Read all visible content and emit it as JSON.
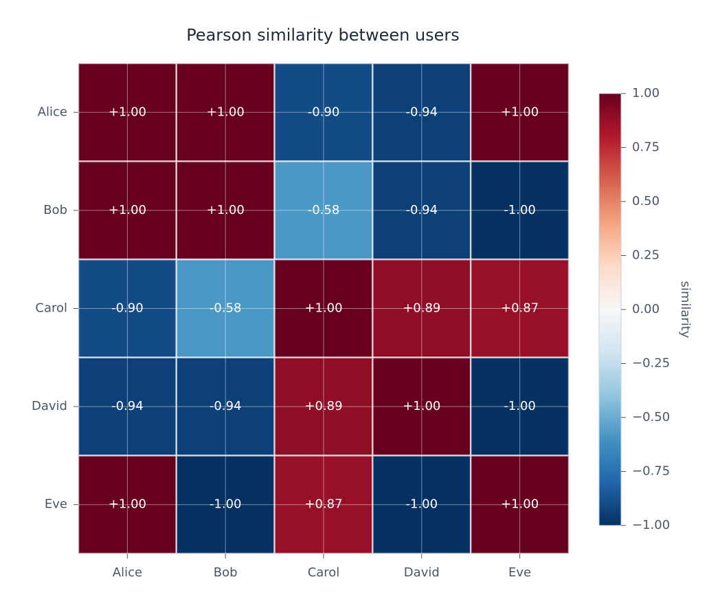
{
  "chart_data": {
    "type": "heatmap",
    "title": "Pearson similarity between users",
    "x_categories": [
      "Alice",
      "Bob",
      "Carol",
      "David",
      "Eve"
    ],
    "y_categories": [
      "Alice",
      "Bob",
      "Carol",
      "David",
      "Eve"
    ],
    "values": [
      [
        1.0,
        1.0,
        -0.9,
        -0.94,
        1.0
      ],
      [
        1.0,
        1.0,
        -0.58,
        -0.94,
        -1.0
      ],
      [
        -0.9,
        -0.58,
        1.0,
        0.89,
        0.87
      ],
      [
        -0.94,
        -0.94,
        0.89,
        1.0,
        -1.0
      ],
      [
        1.0,
        -1.0,
        0.87,
        -1.0,
        1.0
      ]
    ],
    "value_labels": [
      [
        "+1.00",
        "+1.00",
        "-0.90",
        "-0.94",
        "+1.00"
      ],
      [
        "+1.00",
        "+1.00",
        "-0.58",
        "-0.94",
        "-1.00"
      ],
      [
        "-0.90",
        "-0.58",
        "+1.00",
        "+0.89",
        "+0.87"
      ],
      [
        "-0.94",
        "-0.94",
        "+0.89",
        "+1.00",
        "-1.00"
      ],
      [
        "+1.00",
        "-1.00",
        "+0.87",
        "-1.00",
        "+1.00"
      ]
    ],
    "colormap": "RdBu_r",
    "zlim": [
      -1.0,
      1.0
    ],
    "zticks": [
      {
        "value": 1.0,
        "label": "1.00"
      },
      {
        "value": 0.75,
        "label": "0.75"
      },
      {
        "value": 0.5,
        "label": "0.50"
      },
      {
        "value": 0.25,
        "label": "0.25"
      },
      {
        "value": 0.0,
        "label": "0.00"
      },
      {
        "value": -0.25,
        "label": "−0.25"
      },
      {
        "value": -0.5,
        "label": "−0.50"
      },
      {
        "value": -0.75,
        "label": "−0.75"
      },
      {
        "value": -1.0,
        "label": "−1.00"
      }
    ],
    "colorbar_label": "similarity",
    "grid": true
  }
}
